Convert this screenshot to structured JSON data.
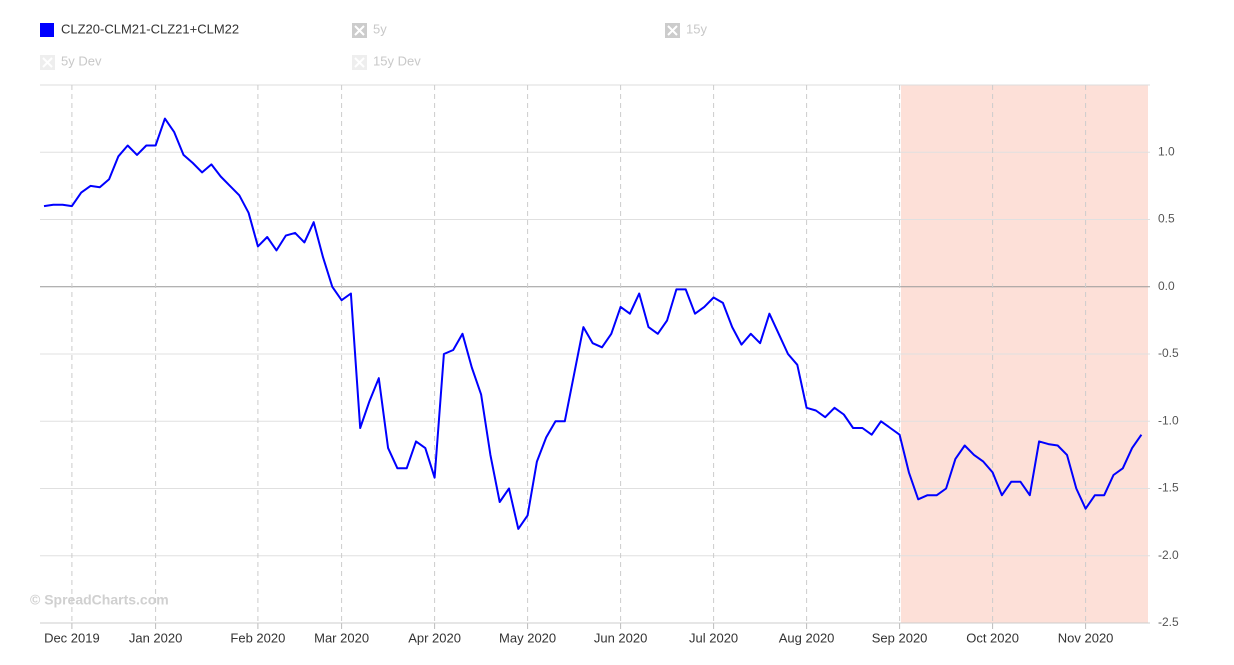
{
  "chart_data": {
    "type": "line",
    "legend_hidden": [
      "5y",
      "15y",
      "5y Dev",
      "15y Dev"
    ],
    "watermark": "© SpreadCharts.com",
    "categories": [
      null,
      null,
      null,
      "Dec 2019",
      null,
      null,
      null,
      null,
      null,
      null,
      null,
      null,
      "Jan 2020",
      null,
      null,
      null,
      null,
      null,
      null,
      null,
      null,
      null,
      null,
      "Feb 2020",
      null,
      null,
      null,
      null,
      null,
      null,
      null,
      null,
      "Mar 2020",
      null,
      null,
      null,
      null,
      null,
      null,
      null,
      null,
      null,
      "Apr 2020",
      null,
      null,
      null,
      null,
      null,
      null,
      null,
      null,
      null,
      "May 2020",
      null,
      null,
      null,
      null,
      null,
      null,
      null,
      null,
      null,
      "Jun 2020",
      null,
      null,
      null,
      null,
      null,
      null,
      null,
      null,
      null,
      "Jul 2020",
      null,
      null,
      null,
      null,
      null,
      null,
      null,
      null,
      null,
      "Aug 2020",
      null,
      null,
      null,
      null,
      null,
      null,
      null,
      null,
      null,
      "Sep 2020",
      null,
      null,
      null,
      null,
      null,
      null,
      null,
      null,
      null,
      "Oct 2020",
      null,
      null,
      null,
      null,
      null,
      null,
      null,
      null,
      null,
      "Nov 2020",
      null,
      null,
      null,
      null,
      null,
      null
    ],
    "series": [
      {
        "name": "CLZ20-CLM21-CLZ21+CLM22",
        "color": "#0000ff",
        "values": [
          0.6,
          0.61,
          0.61,
          0.6,
          0.7,
          0.75,
          0.74,
          0.8,
          0.97,
          1.05,
          0.98,
          1.05,
          1.05,
          1.25,
          1.15,
          0.98,
          0.92,
          0.85,
          0.91,
          0.82,
          0.75,
          0.68,
          0.55,
          0.3,
          0.37,
          0.27,
          0.38,
          0.4,
          0.33,
          0.48,
          0.22,
          0.0,
          -0.1,
          -0.05,
          -1.05,
          -0.85,
          -0.68,
          -1.2,
          -1.35,
          -1.35,
          -1.15,
          -1.2,
          -1.42,
          -0.5,
          -0.47,
          -0.35,
          -0.6,
          -0.8,
          -1.25,
          -1.6,
          -1.5,
          -1.8,
          -1.7,
          -1.3,
          -1.12,
          -1.0,
          -1.0,
          -0.65,
          -0.3,
          -0.42,
          -0.45,
          -0.35,
          -0.15,
          -0.2,
          -0.05,
          -0.3,
          -0.35,
          -0.25,
          -0.02,
          -0.02,
          -0.2,
          -0.15,
          -0.08,
          -0.12,
          -0.3,
          -0.43,
          -0.35,
          -0.42,
          -0.2,
          -0.35,
          -0.5,
          -0.58,
          -0.9,
          -0.92,
          -0.97,
          -0.9,
          -0.95,
          -1.05,
          -1.05,
          -1.1,
          -1.0,
          -1.05,
          -1.1,
          -1.38,
          -1.58,
          -1.55,
          -1.55,
          -1.5,
          -1.28,
          -1.18,
          -1.25,
          -1.3,
          -1.38,
          -1.55,
          -1.45,
          -1.45,
          -1.55,
          -1.15,
          -1.17,
          -1.18,
          -1.25,
          -1.5,
          -1.65,
          -1.55,
          -1.55,
          -1.4,
          -1.35,
          -1.2,
          -1.1
        ]
      }
    ],
    "ylim": [
      -2.5,
      1.5
    ],
    "yticks": [
      {
        "value": 1,
        "label": "1.0"
      },
      0.5,
      {
        "value": 0,
        "label": "0.0"
      },
      -0.5,
      {
        "value": -1,
        "label": "-1.0"
      },
      -1.5,
      {
        "value": -2,
        "label": "-2.0"
      },
      -2.5
    ],
    "grid": true
  }
}
